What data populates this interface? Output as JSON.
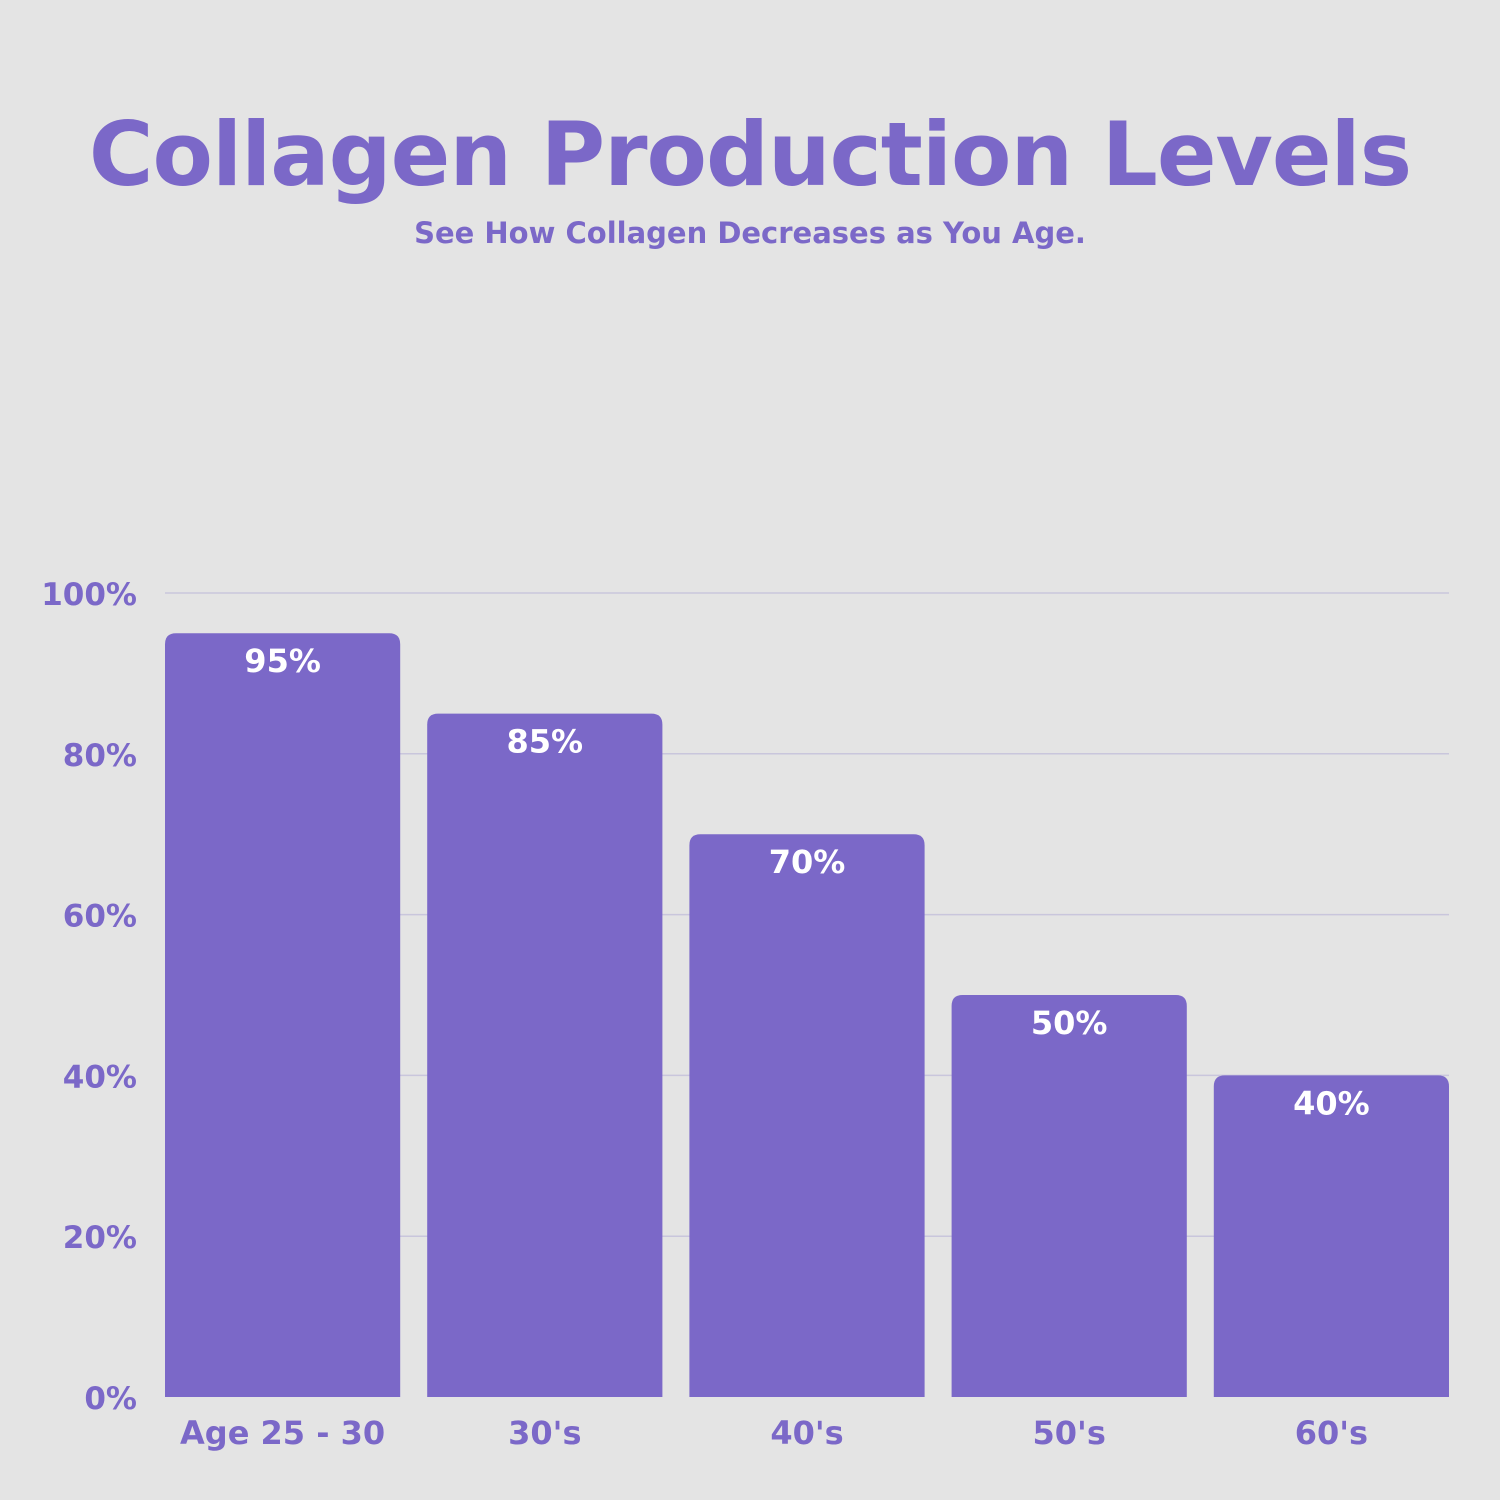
{
  "chart_data": {
    "type": "bar",
    "title": "Collagen Production Levels",
    "subtitle": "See How Collagen Decreases as You Age.",
    "categories": [
      "Age 25 - 30",
      "30's",
      "40's",
      "50's",
      "60's"
    ],
    "values": [
      95,
      85,
      70,
      50,
      40
    ],
    "data_labels": [
      "95%",
      "85%",
      "70%",
      "50%",
      "40%"
    ],
    "ylim": [
      0,
      100
    ],
    "yticks": [
      0,
      20,
      40,
      60,
      80,
      100
    ],
    "ytick_labels": [
      "0%",
      "20%",
      "40%",
      "60%",
      "80%",
      "100%"
    ],
    "xlabel": "",
    "ylabel": "",
    "grid": true,
    "legend": "none",
    "colors": {
      "bar": "#7b68c8",
      "text": "#7b68c8",
      "data_label": "#ffffff",
      "grid": "#c9c6dc",
      "background": "#e4e4e4"
    }
  }
}
